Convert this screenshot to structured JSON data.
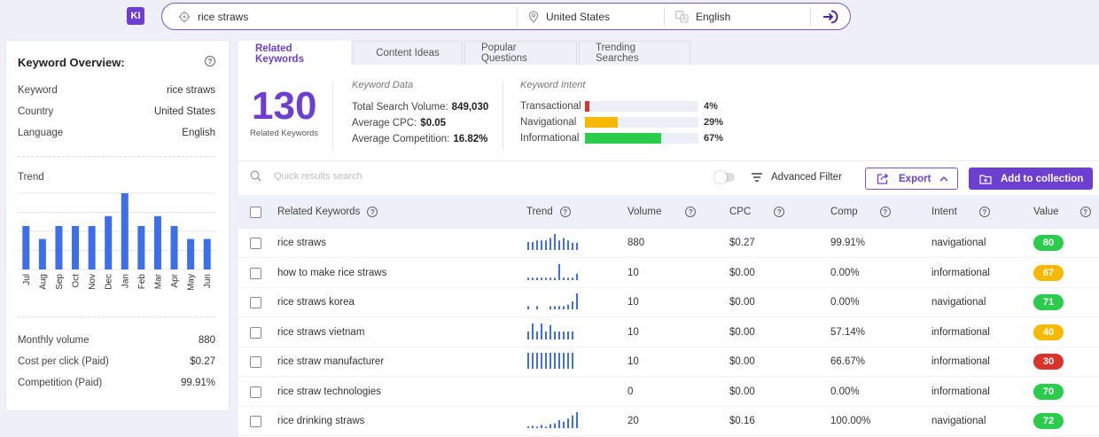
{
  "app": {
    "logo": "KI"
  },
  "search": {
    "keyword": "rice straws",
    "country": "United States",
    "language": "English"
  },
  "overview": {
    "title": "Keyword Overview:",
    "rows": [
      {
        "label": "Keyword",
        "value": "rice straws"
      },
      {
        "label": "Country",
        "value": "United States"
      },
      {
        "label": "Language",
        "value": "English"
      }
    ],
    "trend_label": "Trend",
    "trend_chart": {
      "type": "bar",
      "categories": [
        "Jul",
        "Aug",
        "Sep",
        "Oct",
        "Nov",
        "Dec",
        "Jan",
        "Feb",
        "Mar",
        "Apr",
        "May",
        "Jun"
      ],
      "values": [
        0.57,
        0.4,
        0.57,
        0.57,
        0.57,
        0.7,
        1.0,
        0.57,
        0.7,
        0.57,
        0.4,
        0.4
      ],
      "color": "#3d6fe8"
    },
    "stats": [
      {
        "label": "Monthly volume",
        "value": "880"
      },
      {
        "label": "Cost per click (Paid)",
        "value": "$0.27"
      },
      {
        "label": "Competition (Paid)",
        "value": "99.91%"
      }
    ]
  },
  "tabs": [
    "Related Keywords",
    "Content Ideas",
    "Popular Questions",
    "Trending Searches"
  ],
  "summary": {
    "count": "130",
    "count_label": "Related Keywords",
    "keyword_data_title": "Keyword Data",
    "total_volume_label": "Total Search Volume:",
    "total_volume": "849,030",
    "avg_cpc_label": "Average CPC:",
    "avg_cpc": "$0.05",
    "avg_comp_label": "Average Competition:",
    "avg_comp": "16.82%",
    "intent_title": "Keyword Intent",
    "intents": [
      {
        "name": "Transactional",
        "pct": "4%",
        "value": 4,
        "color": "#d9342b"
      },
      {
        "name": "Navigational",
        "pct": "29%",
        "value": 29,
        "color": "#f7b900"
      },
      {
        "name": "Informational",
        "pct": "67%",
        "value": 67,
        "color": "#2bcc4c"
      }
    ]
  },
  "toolbar": {
    "search_placeholder": "Quick results search",
    "advanced_filter": "Advanced Filter",
    "export": "Export",
    "add_collection": "Add to collection"
  },
  "table": {
    "columns": [
      "Related Keywords",
      "Trend",
      "Volume",
      "CPC",
      "Comp",
      "Intent",
      "Value"
    ],
    "rows": [
      {
        "keyword": "rice straws",
        "trend": [
          0.5,
          0.5,
          0.6,
          0.6,
          0.6,
          0.75,
          1.0,
          0.6,
          0.75,
          0.6,
          0.45,
          0.45
        ],
        "volume": "880",
        "cpc": "$0.27",
        "comp": "99.91%",
        "intent": "navigational",
        "value": "80",
        "value_color": "#2bcc4c"
      },
      {
        "keyword": "how to make rice straws",
        "trend": [
          0.15,
          0.15,
          0.15,
          0.15,
          0.15,
          0.15,
          0.15,
          1.0,
          0.15,
          0.15,
          0.15,
          0.4
        ],
        "volume": "10",
        "cpc": "$0.00",
        "comp": "0.00%",
        "intent": "informational",
        "value": "67",
        "value_color": "#f7b900"
      },
      {
        "keyword": "rice straws korea",
        "trend": [
          0.2,
          0,
          0.2,
          0,
          0,
          0.2,
          0.2,
          0.2,
          0.2,
          0.3,
          0.5,
          1.0
        ],
        "volume": "10",
        "cpc": "$0.00",
        "comp": "0.00%",
        "intent": "navigational",
        "value": "71",
        "value_color": "#2bcc4c"
      },
      {
        "keyword": "rice straws vietnam",
        "trend": [
          0.5,
          1.0,
          0.5,
          1.0,
          0.5,
          0.9,
          0.5,
          0.5,
          0.5,
          0.5,
          0.5,
          0
        ],
        "volume": "10",
        "cpc": "$0.00",
        "comp": "57.14%",
        "intent": "informational",
        "value": "40",
        "value_color": "#f7b900"
      },
      {
        "keyword": "rice straw manufacturer",
        "trend": [
          1,
          1,
          1,
          1,
          1,
          1,
          1,
          1,
          1,
          1,
          1,
          0
        ],
        "volume": "10",
        "cpc": "$0.00",
        "comp": "66.67%",
        "intent": "informational",
        "value": "30",
        "value_color": "#d9342b"
      },
      {
        "keyword": "rice straw technologies",
        "trend": [],
        "volume": "0",
        "cpc": "$0.00",
        "comp": "0.00%",
        "intent": "informational",
        "value": "70",
        "value_color": "#2bcc4c"
      },
      {
        "keyword": "rice drinking straws",
        "trend": [
          0.1,
          0.15,
          0.1,
          0.2,
          0.1,
          0.25,
          0.3,
          0.5,
          0.4,
          0.6,
          0.8,
          1.0
        ],
        "volume": "20",
        "cpc": "$0.16",
        "comp": "100.00%",
        "intent": "navigational",
        "value": "72",
        "value_color": "#2bcc4c"
      }
    ]
  }
}
